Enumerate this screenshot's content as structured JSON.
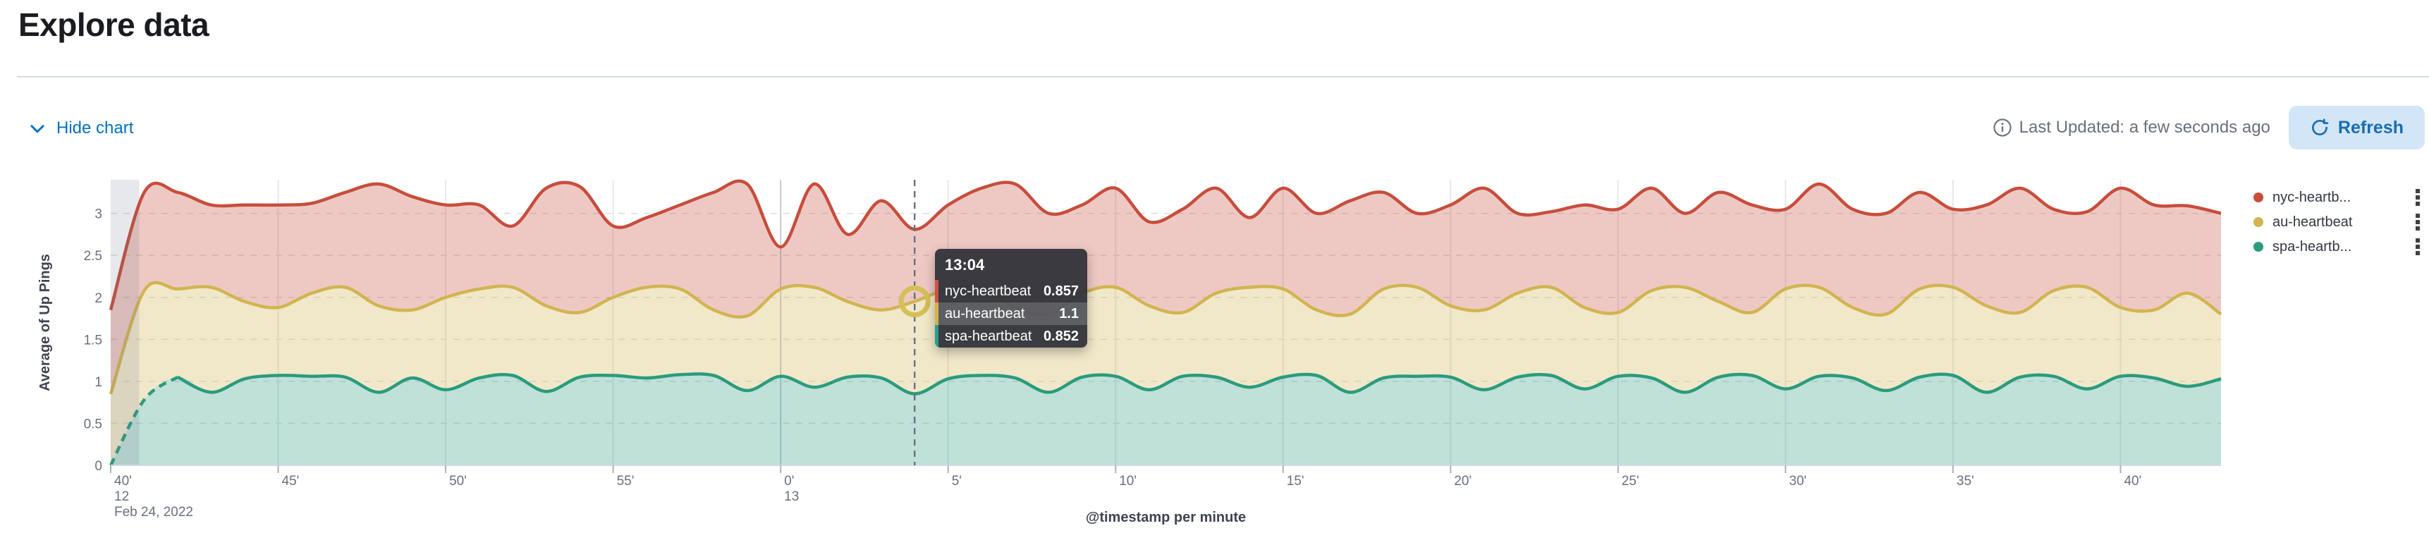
{
  "page": {
    "title": "Explore data"
  },
  "toolbar": {
    "hide_chart_label": "Hide chart",
    "last_updated": "Last Updated: a few seconds ago",
    "refresh_label": "Refresh"
  },
  "colors": {
    "link_blue": "#0071c2",
    "refresh_bg": "#d2e6f7",
    "refresh_text": "#1b6cb0",
    "nyc": "#c84d3c",
    "au": "#d2b450",
    "spa": "#2b9b7d",
    "grid_v": "#e6e8ec",
    "grid_v_hour": "#c7cbd3",
    "grid_h": "#dcdee2",
    "axis_line": "#d3dae6",
    "cursor_line": "#69707d",
    "marker_ring": "#d6bf57",
    "partial_band": "rgba(105,115,130,0.16)"
  },
  "legend": {
    "items": [
      {
        "label": "nyc-heartb...",
        "color": "#c84d3c"
      },
      {
        "label": "au-heartbeat",
        "color": "#d2b450"
      },
      {
        "label": "spa-heartb...",
        "color": "#2b9b7d"
      }
    ]
  },
  "tooltip": {
    "time": "13:04",
    "rows": [
      {
        "label": "nyc-heartbeat",
        "value": "0.857",
        "color": "#cf5146",
        "highlighted": false
      },
      {
        "label": "au-heartbeat",
        "value": "1.1",
        "color": "#d0b54c",
        "highlighted": true
      },
      {
        "label": "spa-heartbeat",
        "value": "0.852",
        "color": "#2a9d8a",
        "highlighted": false
      }
    ]
  },
  "chart_data": {
    "type": "area",
    "stacked": true,
    "xlabel": "@timestamp per minute",
    "ylabel": "Average of Up Pings",
    "x_start": "12:40",
    "x_end": "13:43",
    "x_interval_minutes": 1,
    "x_tick_minutes": [
      0,
      5,
      10,
      15,
      20,
      25,
      30,
      35,
      40,
      45,
      50,
      55,
      60
    ],
    "x_tick_labels": [
      "40'",
      "45'",
      "50'",
      "55'",
      "0'",
      "5'",
      "10'",
      "15'",
      "20'",
      "25'",
      "30'",
      "35'",
      "40'"
    ],
    "x_secondary_ticks": [
      {
        "minute": 0,
        "label": "12"
      },
      {
        "minute": 20,
        "label": "13"
      }
    ],
    "x_date_label": "Feb 24, 2022",
    "y_ticks": [
      0,
      0.5,
      1,
      1.5,
      2,
      2.5,
      3
    ],
    "ylim": [
      0,
      3.4
    ],
    "grid": true,
    "legend_position": "right",
    "fill_opacity": 0.3,
    "cursor": {
      "time": "13:04",
      "minute_index": 24
    },
    "partial_bucket_minutes": 0.85,
    "series": [
      {
        "name": "spa-heartbeat",
        "color": "#2b9b7d",
        "dashed_lead_points": 3,
        "values": [
          0,
          0.78,
          1.05,
          0.87,
          1.03,
          1.07,
          1.06,
          1.05,
          0.87,
          1.04,
          0.9,
          1.04,
          1.07,
          0.88,
          1.05,
          1.07,
          1.04,
          1.08,
          1.07,
          0.89,
          1.06,
          0.93,
          1.05,
          1.04,
          0.852,
          1.03,
          1.07,
          1.04,
          0.87,
          1.05,
          1.06,
          0.9,
          1.06,
          1.05,
          0.93,
          1.05,
          1.07,
          0.87,
          1.04,
          1.06,
          1.05,
          0.9,
          1.05,
          1.07,
          0.91,
          1.06,
          1.04,
          0.87,
          1.05,
          1.07,
          0.91,
          1.06,
          1.04,
          0.89,
          1.05,
          1.07,
          0.87,
          1.05,
          1.06,
          0.91,
          1.06,
          1.04,
          0.94,
          1.03
        ]
      },
      {
        "name": "au-heartbeat",
        "color": "#d2b450",
        "dashed_lead_points": 0,
        "values": [
          0.85,
          1.3,
          1.05,
          1.25,
          0.92,
          0.81,
          0.99,
          1.07,
          1.03,
          0.81,
          1.1,
          1.06,
          1.05,
          1.02,
          0.77,
          0.93,
          1.08,
          1.02,
          0.78,
          0.89,
          1.04,
          1.19,
          0.9,
          0.81,
          1.1,
          1.07,
          1.05,
          0.84,
          0.93,
          1.0,
          1.06,
          1.0,
          0.76,
          1.0,
          1.19,
          1.05,
          0.78,
          0.93,
          1.06,
          1.06,
          0.85,
          0.95,
          1.0,
          1.05,
          0.97,
          0.76,
          1.04,
          1.25,
          0.9,
          0.75,
          1.19,
          1.06,
          0.84,
          0.91,
          1.05,
          1.05,
          1.03,
          0.77,
          1.02,
          1.21,
          0.82,
          0.81,
          1.11,
          0.77
        ]
      },
      {
        "name": "nyc-heartbeat",
        "color": "#c84d3c",
        "dashed_lead_points": 0,
        "values": [
          1.0,
          1.17,
          1.15,
          0.98,
          1.15,
          1.22,
          1.07,
          1.13,
          1.45,
          1.35,
          1.1,
          1.0,
          0.73,
          1.4,
          1.5,
          0.85,
          0.83,
          1.0,
          1.4,
          1.57,
          0.5,
          1.23,
          0.8,
          1.3,
          0.857,
          1.0,
          1.18,
          1.47,
          1.2,
          1.05,
          1.18,
          1.0,
          1.23,
          1.25,
          0.83,
          1.2,
          1.15,
          1.35,
          1.15,
          0.88,
          1.2,
          1.45,
          0.95,
          0.9,
          1.22,
          1.23,
          1.22,
          0.88,
          1.3,
          1.28,
          0.95,
          1.23,
          1.17,
          1.2,
          1.15,
          0.93,
          1.2,
          1.48,
          0.97,
          0.9,
          1.42,
          1.25,
          1.04,
          1.2
        ]
      }
    ]
  }
}
